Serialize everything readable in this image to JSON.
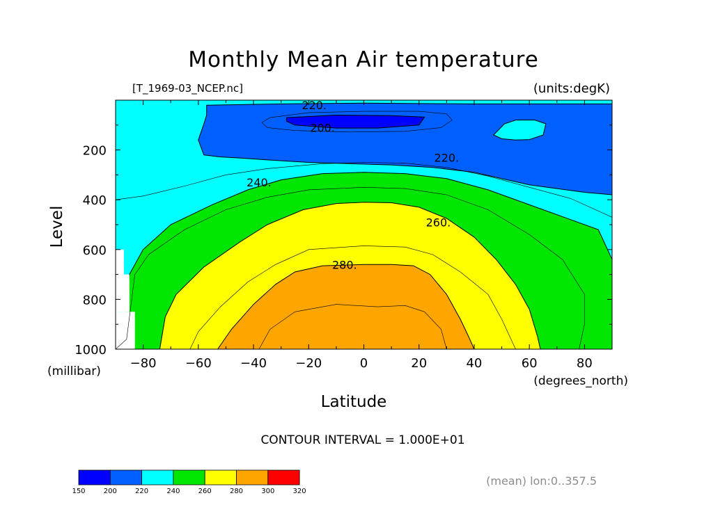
{
  "chart_data": {
    "type": "contour",
    "title": "Monthly Mean Air temperature",
    "file_label": "[T_1969-03_NCEP.nc]",
    "units_label": "(units:degK)",
    "xlabel": "Latitude",
    "xunits": "(degrees_north)",
    "ylabel": "Level",
    "yunits": "(millibar)",
    "xlim": [
      -90,
      90
    ],
    "ylim": [
      0,
      1000
    ],
    "y_inverted": true,
    "x_ticks": [
      -80,
      -60,
      -40,
      -20,
      0,
      20,
      40,
      60,
      80
    ],
    "x_tick_labels": [
      "−80",
      "−60",
      "−40",
      "−20",
      "0",
      "20",
      "40",
      "60",
      "80"
    ],
    "y_ticks": [
      200,
      400,
      600,
      800,
      1000
    ],
    "y_tick_labels": [
      "200",
      "400",
      "600",
      "800",
      "1000"
    ],
    "contour_interval_text": "CONTOUR INTERVAL = 1.000E+01",
    "mean_note": "(mean) lon:0..357.5",
    "contour_labels": [
      {
        "text": "220.",
        "lat": -18,
        "level": 20
      },
      {
        "text": "200.",
        "lat": -15,
        "level": 110
      },
      {
        "text": "220.",
        "lat": 30,
        "level": 230
      },
      {
        "text": "240.",
        "lat": -38,
        "level": 330
      },
      {
        "text": "260.",
        "lat": 27,
        "level": 490
      },
      {
        "text": "280.",
        "lat": -7,
        "level": 660
      }
    ],
    "colorbar": {
      "levels": [
        150,
        200,
        220,
        240,
        260,
        280,
        300,
        320
      ],
      "labels": [
        "150",
        "200",
        "220",
        "240",
        "260",
        "280",
        "300",
        "320"
      ],
      "colors": [
        "#0000ff",
        "#0060ff",
        "#00ffff",
        "#00e600",
        "#ffff00",
        "#ffa500",
        "#ff0000"
      ]
    },
    "regions": [
      {
        "name": "cyan-220-240",
        "color": "#00ffff",
        "points": [
          [
            -90,
            0
          ],
          [
            90,
            0
          ],
          [
            90,
            1000
          ],
          [
            -90,
            1000
          ]
        ]
      },
      {
        "name": "blue-200-220",
        "color": "#0060ff",
        "points": [
          [
            -57,
            20
          ],
          [
            -30,
            15
          ],
          [
            0,
            12
          ],
          [
            40,
            15
          ],
          [
            75,
            15
          ],
          [
            90,
            15
          ],
          [
            90,
            380
          ],
          [
            80,
            370
          ],
          [
            60,
            340
          ],
          [
            40,
            290
          ],
          [
            25,
            270
          ],
          [
            10,
            260
          ],
          [
            -5,
            255
          ],
          [
            -20,
            250
          ],
          [
            -35,
            240
          ],
          [
            -45,
            232
          ],
          [
            -52,
            228
          ],
          [
            -58,
            220
          ],
          [
            -60,
            160
          ],
          [
            -58,
            95
          ],
          [
            -57,
            60
          ]
        ]
      },
      {
        "name": "cyan-hole-high-lat",
        "color": "#00ffff",
        "points": [
          [
            51,
            95
          ],
          [
            55,
            80
          ],
          [
            62,
            80
          ],
          [
            66,
            95
          ],
          [
            65,
            140
          ],
          [
            60,
            158
          ],
          [
            55,
            160
          ],
          [
            50,
            155
          ],
          [
            47,
            140
          ]
        ]
      },
      {
        "name": "dark-blue-below-200",
        "color": "#0000ff",
        "points": [
          [
            -28,
            70
          ],
          [
            -10,
            60
          ],
          [
            10,
            62
          ],
          [
            22,
            68
          ],
          [
            20,
            100
          ],
          [
            5,
            112
          ],
          [
            -10,
            112
          ],
          [
            -25,
            100
          ],
          [
            -28,
            85
          ]
        ]
      },
      {
        "name": "green-240-260",
        "color": "#00e600",
        "points": [
          [
            -86,
            1000
          ],
          [
            -86,
            850
          ],
          [
            -85,
            700
          ],
          [
            -80,
            600
          ],
          [
            -70,
            500
          ],
          [
            -55,
            420
          ],
          [
            -42,
            360
          ],
          [
            -30,
            320
          ],
          [
            -15,
            295
          ],
          [
            0,
            290
          ],
          [
            15,
            295
          ],
          [
            30,
            315
          ],
          [
            45,
            360
          ],
          [
            60,
            420
          ],
          [
            75,
            480
          ],
          [
            85,
            520
          ],
          [
            90,
            640
          ],
          [
            90,
            1000
          ]
        ]
      },
      {
        "name": "yellow-260-280",
        "color": "#ffff00",
        "points": [
          [
            -74,
            1000
          ],
          [
            -72,
            870
          ],
          [
            -68,
            780
          ],
          [
            -58,
            670
          ],
          [
            -45,
            570
          ],
          [
            -35,
            500
          ],
          [
            -22,
            440
          ],
          [
            -10,
            415
          ],
          [
            0,
            410
          ],
          [
            10,
            412
          ],
          [
            20,
            430
          ],
          [
            30,
            475
          ],
          [
            40,
            550
          ],
          [
            48,
            640
          ],
          [
            55,
            740
          ],
          [
            60,
            840
          ],
          [
            63,
            950
          ],
          [
            64,
            1000
          ]
        ]
      },
      {
        "name": "orange-280-300",
        "color": "#ffa500",
        "points": [
          [
            -53,
            1000
          ],
          [
            -48,
            920
          ],
          [
            -40,
            820
          ],
          [
            -32,
            740
          ],
          [
            -25,
            690
          ],
          [
            -15,
            665
          ],
          [
            0,
            660
          ],
          [
            10,
            660
          ],
          [
            18,
            665
          ],
          [
            24,
            700
          ],
          [
            30,
            780
          ],
          [
            35,
            880
          ],
          [
            38,
            950
          ],
          [
            40,
            1000
          ]
        ]
      }
    ],
    "contour_lines": [
      {
        "value": 210,
        "points": [
          [
            -37,
            90
          ],
          [
            -34,
            70
          ],
          [
            -20,
            50
          ],
          [
            0,
            45
          ],
          [
            20,
            45
          ],
          [
            30,
            55
          ],
          [
            32,
            80
          ],
          [
            28,
            110
          ],
          [
            15,
            125
          ],
          [
            -5,
            128
          ],
          [
            -25,
            122
          ],
          [
            -35,
            110
          ],
          [
            -37,
            90
          ]
        ]
      },
      {
        "value": 230,
        "points": [
          [
            -90,
            400
          ],
          [
            -80,
            385
          ],
          [
            -65,
            345
          ],
          [
            -50,
            300
          ],
          [
            -35,
            275
          ],
          [
            -15,
            255
          ],
          [
            0,
            250
          ],
          [
            15,
            253
          ],
          [
            30,
            270
          ],
          [
            45,
            305
          ],
          [
            60,
            350
          ],
          [
            75,
            395
          ],
          [
            90,
            470
          ]
        ]
      },
      {
        "value": 250,
        "points": [
          [
            -90,
            1000
          ],
          [
            -86,
            960
          ],
          [
            -83,
            700
          ],
          [
            -78,
            620
          ],
          [
            -65,
            520
          ],
          [
            -50,
            440
          ],
          [
            -35,
            390
          ],
          [
            -20,
            360
          ],
          [
            0,
            350
          ],
          [
            15,
            355
          ],
          [
            30,
            380
          ],
          [
            45,
            440
          ],
          [
            60,
            540
          ],
          [
            72,
            640
          ],
          [
            80,
            780
          ],
          [
            80,
            900
          ],
          [
            78,
            1000
          ]
        ]
      },
      {
        "value": 270,
        "points": [
          [
            -63,
            1000
          ],
          [
            -60,
            930
          ],
          [
            -52,
            830
          ],
          [
            -42,
            730
          ],
          [
            -32,
            660
          ],
          [
            -20,
            600
          ],
          [
            0,
            585
          ],
          [
            15,
            590
          ],
          [
            25,
            620
          ],
          [
            35,
            690
          ],
          [
            45,
            780
          ],
          [
            50,
            880
          ],
          [
            55,
            1000
          ]
        ]
      },
      {
        "value": 290,
        "points": [
          [
            -38,
            1000
          ],
          [
            -34,
            920
          ],
          [
            -25,
            850
          ],
          [
            -10,
            820
          ],
          [
            5,
            830
          ],
          [
            15,
            825
          ],
          [
            22,
            850
          ],
          [
            28,
            920
          ],
          [
            30,
            1000
          ]
        ]
      }
    ]
  }
}
